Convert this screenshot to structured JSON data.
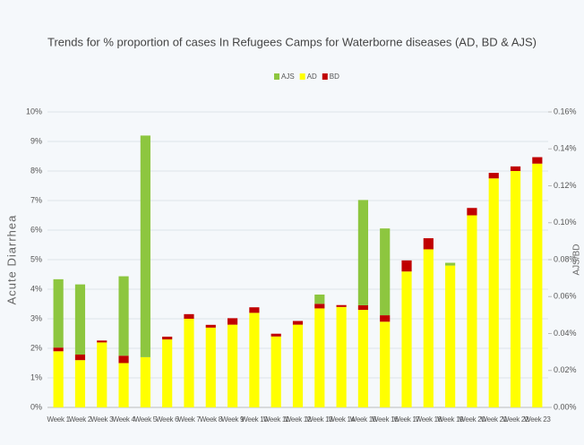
{
  "chart_data": {
    "type": "bar",
    "stacked": true,
    "title": "Trends for % proportion of cases In Refugees Camps for Waterborne diseases (AD, BD & AJS)",
    "y_label": "Acute Diarrhea",
    "y2_label": "AJS/BD",
    "categories": [
      "Week 1",
      "Week 2",
      "Week 3",
      "Week 4",
      "Week 5",
      "Week 6",
      "Week 7",
      "Week 8",
      "Week 9",
      "Week 10",
      "Week 11",
      "Week 12",
      "Week 13",
      "Week 14",
      "Week 15",
      "Week 16",
      "Week 17",
      "Week 18",
      "Week 19",
      "Week 20",
      "Week 21",
      "Week 22",
      "Week 23"
    ],
    "series": [
      {
        "name": "AD",
        "color": "#ffff00",
        "axis": "y",
        "values": [
          1.9,
          1.6,
          2.2,
          1.5,
          1.7,
          2.3,
          3.0,
          2.7,
          2.8,
          3.2,
          2.4,
          2.8,
          3.35,
          3.4,
          3.3,
          2.9,
          4.6,
          5.35,
          4.8,
          6.5,
          7.75,
          8.0,
          8.25
        ]
      },
      {
        "name": "BD",
        "color": "#c00000",
        "axis": "y2",
        "values": [
          0.002,
          0.003,
          0.001,
          0.004,
          0,
          0.0015,
          0.0025,
          0.0015,
          0.0035,
          0.003,
          0.0015,
          0.002,
          0.0025,
          0.001,
          0.0025,
          0.0035,
          0.006,
          0.006,
          0,
          0.004,
          0.003,
          0.0025,
          0.0035
        ]
      },
      {
        "name": "AJS",
        "color": "#8dc63f",
        "axis": "y2",
        "values": [
          0.037,
          0.038,
          0,
          0.043,
          0.12,
          0,
          0,
          0,
          0,
          0,
          0,
          0,
          0.005,
          0,
          0.057,
          0.047,
          0,
          0,
          0.0015,
          0,
          0,
          0,
          0
        ]
      }
    ],
    "legend_order": [
      "AJS",
      "AD",
      "BD"
    ],
    "ylim": [
      0,
      10
    ],
    "yticks": [
      {
        "value": 0,
        "label": "0%"
      },
      {
        "value": 1,
        "label": "1%"
      },
      {
        "value": 2,
        "label": "2%"
      },
      {
        "value": 3,
        "label": "3%"
      },
      {
        "value": 4,
        "label": "4%"
      },
      {
        "value": 5,
        "label": "5%"
      },
      {
        "value": 6,
        "label": "6%"
      },
      {
        "value": 7,
        "label": "7%"
      },
      {
        "value": 8,
        "label": "8%"
      },
      {
        "value": 9,
        "label": "9%"
      },
      {
        "value": 10,
        "label": "10%"
      }
    ],
    "y2lim": [
      0,
      0.16
    ],
    "y2ticks": [
      {
        "value": 0,
        "label": "0.00%"
      },
      {
        "value": 0.02,
        "label": "0.02%"
      },
      {
        "value": 0.04,
        "label": "0.04%"
      },
      {
        "value": 0.06,
        "label": "0.06%"
      },
      {
        "value": 0.08,
        "label": "0.08%"
      },
      {
        "value": 0.1,
        "label": "0.10%"
      },
      {
        "value": 0.12,
        "label": "0.12%"
      },
      {
        "value": 0.14,
        "label": "0.14%"
      },
      {
        "value": 0.16,
        "label": "0.16%"
      }
    ],
    "grid": true
  }
}
